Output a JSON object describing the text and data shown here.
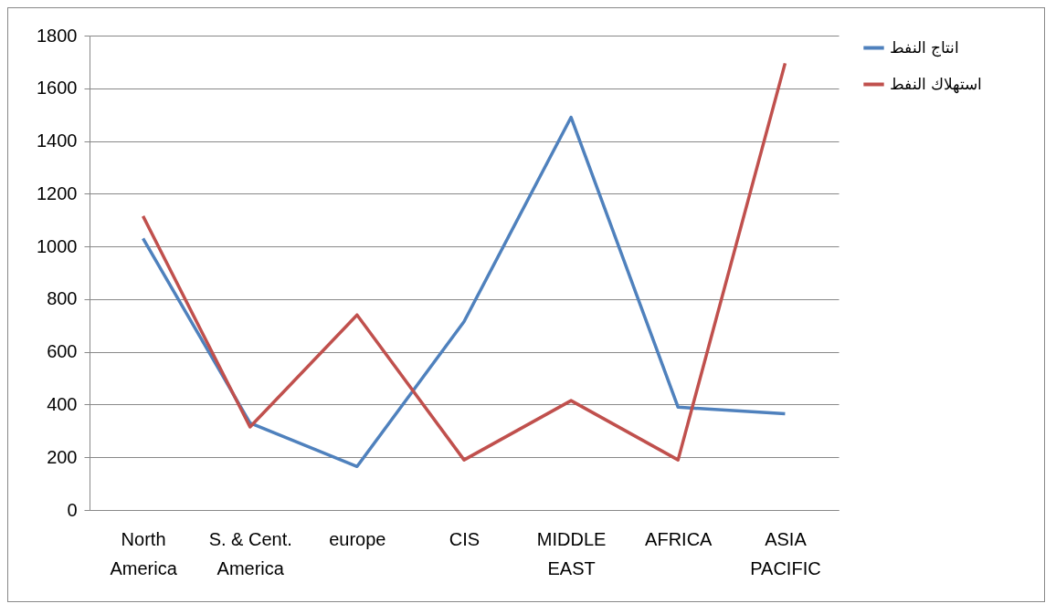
{
  "chart_data": {
    "type": "line",
    "categories": [
      "North America",
      "S. & Cent. America",
      "europe",
      "CIS",
      "MIDDLE EAST",
      "AFRICA",
      "ASIA PACIFIC"
    ],
    "series": [
      {
        "name": "انتاج النفط",
        "color": "#4f81bd",
        "values": [
          1030,
          330,
          165,
          715,
          1490,
          390,
          365
        ]
      },
      {
        "name": "استهلاك النفط",
        "color": "#c0504d",
        "values": [
          1115,
          315,
          740,
          190,
          415,
          190,
          1695
        ]
      }
    ],
    "ylim": [
      0,
      1800
    ],
    "yticks": [
      0,
      200,
      400,
      600,
      800,
      1000,
      1200,
      1400,
      1600,
      1800
    ],
    "grid": "y",
    "legend": "right",
    "marker": "none",
    "line_style": "solid"
  }
}
